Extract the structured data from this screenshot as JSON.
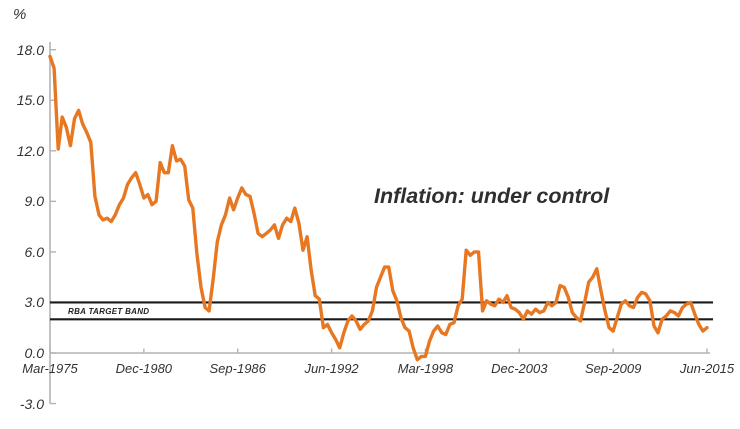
{
  "chart_data": {
    "type": "line",
    "title": "Inflation: under control",
    "ylabel": "%",
    "frequency": "quarterly",
    "x_range": [
      "Mar-1975",
      "Jun-2015"
    ],
    "x_tick_labels": [
      "Mar-1975",
      "Dec-1980",
      "Sep-1986",
      "Jun-1992",
      "Mar-1998",
      "Dec-2003",
      "Sep-2009",
      "Jun-2015"
    ],
    "y_tick_values": [
      18,
      15,
      12,
      9,
      6,
      3,
      0,
      -3
    ],
    "y_tick_labels": [
      "18.0",
      "15.0",
      "12.0",
      "9.0",
      "6.0",
      "3.0",
      "0.0",
      "-3.0"
    ],
    "ylim": [
      -3,
      18
    ],
    "grid": false,
    "legend": "none",
    "band": {
      "label": "RBA TARGET BAND",
      "low": 2.0,
      "high": 3.0
    },
    "colors": {
      "line": "#e87722",
      "band_line": "#1a1a1a",
      "axis": "#b3b3b3",
      "text": "#333333"
    },
    "values": [
      17.6,
      16.9,
      12.1,
      14.0,
      13.4,
      12.3,
      13.9,
      14.4,
      13.6,
      13.1,
      12.5,
      9.3,
      8.2,
      7.9,
      8.0,
      7.8,
      8.2,
      8.8,
      9.2,
      10.0,
      10.4,
      10.7,
      10.0,
      9.2,
      9.4,
      8.8,
      9.0,
      11.3,
      10.7,
      10.7,
      12.3,
      11.4,
      11.5,
      11.1,
      9.1,
      8.6,
      5.9,
      3.9,
      2.7,
      2.5,
      4.4,
      6.6,
      7.6,
      8.2,
      9.2,
      8.5,
      9.2,
      9.8,
      9.4,
      9.3,
      8.3,
      7.1,
      6.9,
      7.1,
      7.3,
      7.6,
      6.8,
      7.6,
      8.0,
      7.8,
      8.6,
      7.7,
      6.1,
      6.9,
      4.9,
      3.4,
      3.2,
      1.5,
      1.7,
      1.2,
      0.8,
      0.3,
      1.2,
      1.9,
      2.2,
      1.9,
      1.4,
      1.7,
      1.9,
      2.5,
      3.9,
      4.5,
      5.1,
      5.1,
      3.7,
      3.1,
      2.1,
      1.5,
      1.3,
      0.3,
      -0.4,
      -0.2,
      -0.2,
      0.7,
      1.3,
      1.6,
      1.2,
      1.1,
      1.7,
      1.8,
      2.8,
      3.2,
      6.1,
      5.8,
      6.0,
      6.0,
      2.5,
      3.1,
      2.9,
      2.8,
      3.2,
      3.0,
      3.4,
      2.7,
      2.6,
      2.4,
      2.0,
      2.5,
      2.3,
      2.6,
      2.4,
      2.5,
      3.0,
      2.8,
      3.0,
      4.0,
      3.9,
      3.3,
      2.4,
      2.1,
      1.9,
      3.0,
      4.2,
      4.5,
      5.0,
      3.7,
      2.5,
      1.5,
      1.3,
      2.1,
      2.9,
      3.1,
      2.8,
      2.7,
      3.3,
      3.6,
      3.5,
      3.1,
      1.6,
      1.2,
      2.0,
      2.2,
      2.5,
      2.4,
      2.2,
      2.7,
      2.9,
      3.0,
      2.3,
      1.7,
      1.3,
      1.5
    ]
  }
}
